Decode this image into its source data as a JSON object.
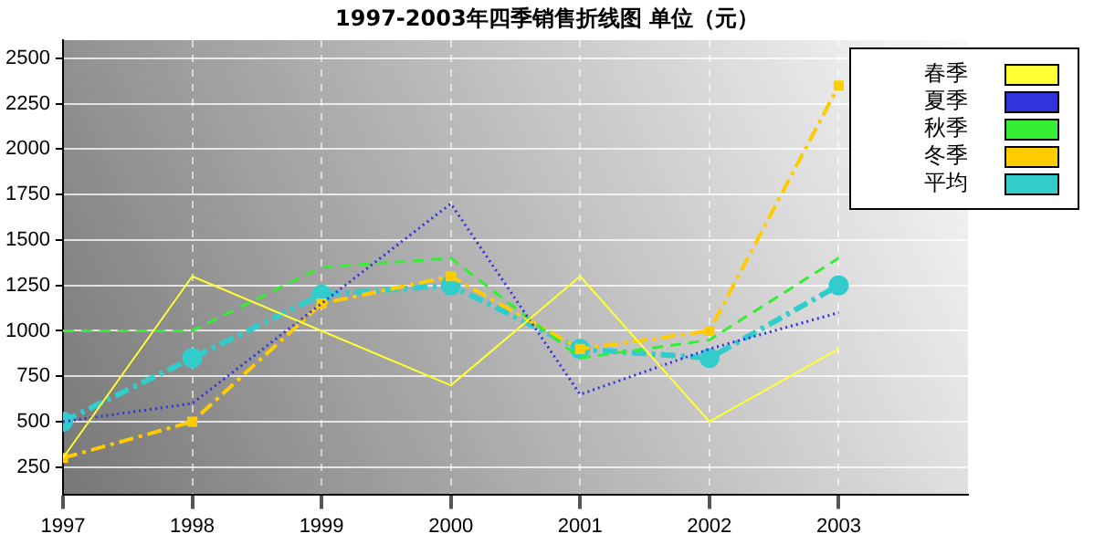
{
  "chart_data": {
    "type": "line",
    "title": "1997-2003年四季销售折线图 单位（元）",
    "x": [
      1997,
      1998,
      1999,
      2000,
      2001,
      2002,
      2003
    ],
    "xlim": [
      1997,
      2004
    ],
    "xticks": [
      1997,
      1998,
      1999,
      2000,
      2001,
      2002,
      2003
    ],
    "ylim": [
      100,
      2600
    ],
    "yticks": [
      250,
      500,
      750,
      1000,
      1250,
      1500,
      1750,
      2000,
      2250,
      2500
    ],
    "grid": true,
    "legend": "top right",
    "series": [
      {
        "name": "春季",
        "color": "#ffff33",
        "values": [
          300,
          1300,
          1000,
          700,
          1300,
          500,
          900
        ],
        "line_style": "solid",
        "marker": "none"
      },
      {
        "name": "夏季",
        "color": "#3333dd",
        "values": [
          500,
          600,
          1150,
          1700,
          650,
          900,
          1100
        ],
        "line_style": "dotted",
        "marker": "none"
      },
      {
        "name": "秋季",
        "color": "#33ee33",
        "values": [
          1000,
          1000,
          1350,
          1400,
          850,
          950,
          1400
        ],
        "line_style": "dashed",
        "marker": "none"
      },
      {
        "name": "冬季",
        "color": "#ffcc00",
        "values": [
          300,
          500,
          1150,
          1300,
          900,
          1000,
          2350
        ],
        "line_style": "dashdot",
        "marker": "square"
      },
      {
        "name": "平均",
        "color": "#33cccc",
        "values": [
          500,
          850,
          1200,
          1250,
          900,
          850,
          1250
        ],
        "line_style": "dashdot",
        "marker": "circle"
      }
    ]
  }
}
